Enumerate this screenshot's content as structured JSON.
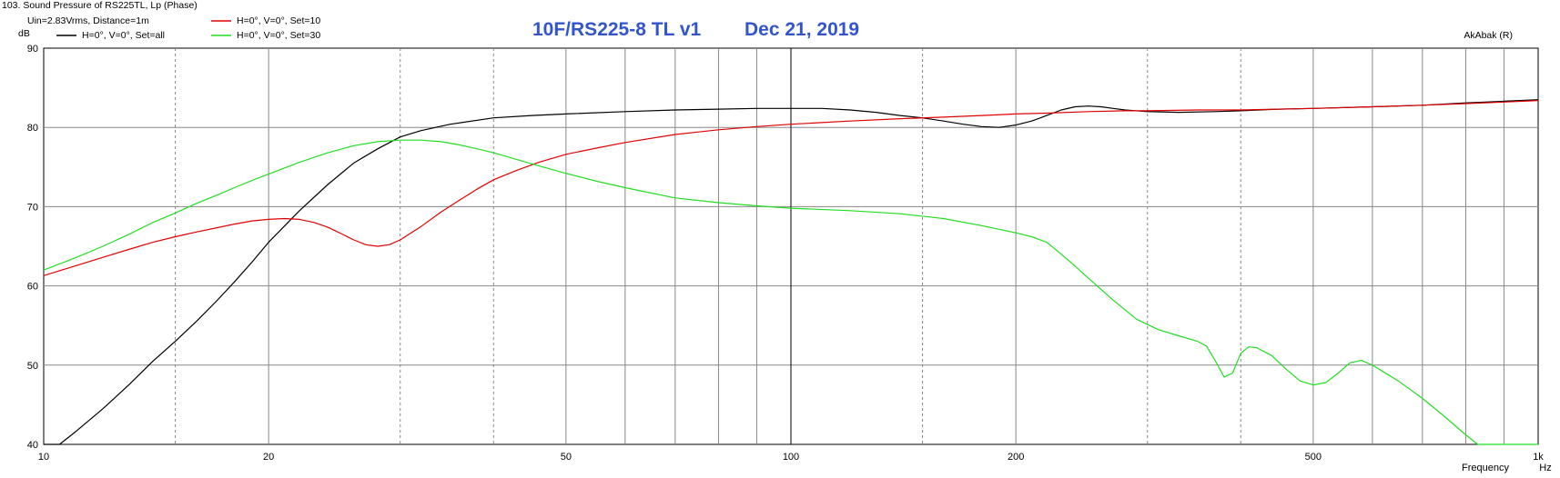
{
  "window_title": "103. Sound Pressure of RS225TL, Lp (Phase)",
  "conditions": "Uin=2.83Vrms, Distance=1m",
  "watermark": "AkAbak (R)",
  "chart_data": {
    "type": "line",
    "title": "10F/RS225-8 TL v1",
    "subtitle": "Dec 21, 2019",
    "xscale": "log",
    "xlim": [
      10,
      1000
    ],
    "ylim": [
      40,
      90
    ],
    "ylabel": "dB",
    "xlabel": "Frequency",
    "xunit": "Hz",
    "grid": true,
    "legend_position": "top-left",
    "xticks": [
      10,
      20,
      50,
      100,
      200,
      500,
      1000
    ],
    "xtick_labels": [
      "10",
      "20",
      "50",
      "100",
      "200",
      "500",
      "1k"
    ],
    "yticks": [
      40,
      50,
      60,
      70,
      80,
      90
    ],
    "series": [
      {
        "name": "H=0°, V=0°, Set=all",
        "color": "#000000",
        "points": [
          [
            10,
            40
          ],
          [
            10.5,
            40
          ],
          [
            11,
            41.5
          ],
          [
            12,
            44.5
          ],
          [
            13,
            47.5
          ],
          [
            14,
            50.5
          ],
          [
            15,
            53
          ],
          [
            16,
            55.5
          ],
          [
            17,
            58
          ],
          [
            18,
            60.5
          ],
          [
            19,
            63
          ],
          [
            20,
            65.5
          ],
          [
            22,
            69.5
          ],
          [
            24,
            72.8
          ],
          [
            26,
            75.5
          ],
          [
            28,
            77.3
          ],
          [
            30,
            78.8
          ],
          [
            32,
            79.6
          ],
          [
            35,
            80.4
          ],
          [
            40,
            81.2
          ],
          [
            45,
            81.5
          ],
          [
            50,
            81.7
          ],
          [
            60,
            82
          ],
          [
            70,
            82.2
          ],
          [
            80,
            82.3
          ],
          [
            90,
            82.4
          ],
          [
            100,
            82.4
          ],
          [
            110,
            82.4
          ],
          [
            120,
            82.2
          ],
          [
            130,
            81.9
          ],
          [
            140,
            81.5
          ],
          [
            150,
            81.2
          ],
          [
            160,
            80.8
          ],
          [
            170,
            80.4
          ],
          [
            180,
            80.1
          ],
          [
            190,
            80
          ],
          [
            200,
            80.3
          ],
          [
            210,
            80.8
          ],
          [
            220,
            81.5
          ],
          [
            230,
            82.2
          ],
          [
            240,
            82.6
          ],
          [
            250,
            82.7
          ],
          [
            260,
            82.6
          ],
          [
            270,
            82.4
          ],
          [
            280,
            82.2
          ],
          [
            300,
            82
          ],
          [
            330,
            81.9
          ],
          [
            370,
            82
          ],
          [
            400,
            82.1
          ],
          [
            450,
            82.3
          ],
          [
            500,
            82.4
          ],
          [
            600,
            82.6
          ],
          [
            700,
            82.8
          ],
          [
            800,
            83.1
          ],
          [
            900,
            83.3
          ],
          [
            1000,
            83.5
          ]
        ]
      },
      {
        "name": "H=0°, V=0°, Set=10",
        "color": "#e00000",
        "points": [
          [
            10,
            61.3
          ],
          [
            11,
            62.5
          ],
          [
            12,
            63.6
          ],
          [
            13,
            64.6
          ],
          [
            14,
            65.5
          ],
          [
            15,
            66.2
          ],
          [
            16,
            66.8
          ],
          [
            17,
            67.3
          ],
          [
            18,
            67.8
          ],
          [
            19,
            68.2
          ],
          [
            20,
            68.4
          ],
          [
            21,
            68.5
          ],
          [
            22,
            68.4
          ],
          [
            23,
            68
          ],
          [
            24,
            67.4
          ],
          [
            25,
            66.6
          ],
          [
            26,
            65.8
          ],
          [
            27,
            65.2
          ],
          [
            28,
            65
          ],
          [
            29,
            65.2
          ],
          [
            30,
            65.8
          ],
          [
            32,
            67.5
          ],
          [
            34,
            69.3
          ],
          [
            36,
            70.8
          ],
          [
            38,
            72.2
          ],
          [
            40,
            73.4
          ],
          [
            43,
            74.6
          ],
          [
            46,
            75.6
          ],
          [
            50,
            76.6
          ],
          [
            55,
            77.4
          ],
          [
            60,
            78.1
          ],
          [
            70,
            79.1
          ],
          [
            80,
            79.7
          ],
          [
            90,
            80.1
          ],
          [
            100,
            80.4
          ],
          [
            120,
            80.8
          ],
          [
            140,
            81.1
          ],
          [
            160,
            81.3
          ],
          [
            180,
            81.5
          ],
          [
            200,
            81.7
          ],
          [
            220,
            81.8
          ],
          [
            250,
            82
          ],
          [
            280,
            82.1
          ],
          [
            300,
            82.1
          ],
          [
            350,
            82.2
          ],
          [
            400,
            82.2
          ],
          [
            500,
            82.4
          ],
          [
            600,
            82.6
          ],
          [
            700,
            82.8
          ],
          [
            800,
            83
          ],
          [
            900,
            83.2
          ],
          [
            1000,
            83.4
          ]
        ]
      },
      {
        "name": "H=0°, V=0°, Set=30",
        "color": "#22dd22",
        "points": [
          [
            10,
            62
          ],
          [
            11,
            63.5
          ],
          [
            12,
            65
          ],
          [
            13,
            66.5
          ],
          [
            14,
            68
          ],
          [
            15,
            69.2
          ],
          [
            16,
            70.4
          ],
          [
            17,
            71.4
          ],
          [
            18,
            72.4
          ],
          [
            19,
            73.3
          ],
          [
            20,
            74.1
          ],
          [
            22,
            75.6
          ],
          [
            24,
            76.8
          ],
          [
            26,
            77.7
          ],
          [
            28,
            78.2
          ],
          [
            30,
            78.4
          ],
          [
            32,
            78.4
          ],
          [
            34,
            78.2
          ],
          [
            36,
            77.8
          ],
          [
            38,
            77.3
          ],
          [
            40,
            76.8
          ],
          [
            45,
            75.4
          ],
          [
            50,
            74.2
          ],
          [
            55,
            73.2
          ],
          [
            60,
            72.4
          ],
          [
            70,
            71.1
          ],
          [
            80,
            70.5
          ],
          [
            90,
            70.1
          ],
          [
            100,
            69.8
          ],
          [
            120,
            69.5
          ],
          [
            140,
            69.1
          ],
          [
            160,
            68.5
          ],
          [
            180,
            67.6
          ],
          [
            200,
            66.7
          ],
          [
            210,
            66.2
          ],
          [
            220,
            65.5
          ],
          [
            230,
            64
          ],
          [
            240,
            62.5
          ],
          [
            250,
            61
          ],
          [
            270,
            58.2
          ],
          [
            290,
            55.8
          ],
          [
            310,
            54.5
          ],
          [
            330,
            53.7
          ],
          [
            350,
            53
          ],
          [
            360,
            52.4
          ],
          [
            370,
            50.5
          ],
          [
            380,
            48.5
          ],
          [
            390,
            49
          ],
          [
            400,
            51.5
          ],
          [
            410,
            52.3
          ],
          [
            420,
            52.2
          ],
          [
            440,
            51.2
          ],
          [
            460,
            49.5
          ],
          [
            480,
            48
          ],
          [
            500,
            47.5
          ],
          [
            520,
            47.8
          ],
          [
            540,
            49
          ],
          [
            560,
            50.3
          ],
          [
            580,
            50.6
          ],
          [
            600,
            50
          ],
          [
            650,
            48
          ],
          [
            700,
            45.8
          ],
          [
            750,
            43.5
          ],
          [
            800,
            41.2
          ],
          [
            830,
            40
          ],
          [
            1000,
            40
          ]
        ]
      }
    ]
  }
}
